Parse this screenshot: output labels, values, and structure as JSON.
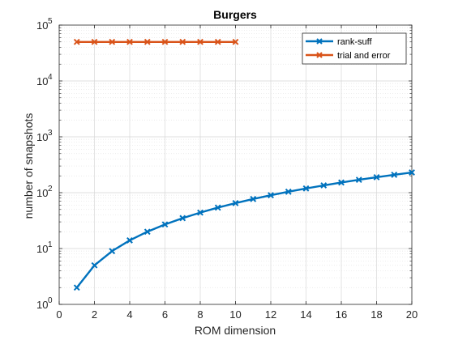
{
  "chart_data": {
    "type": "line",
    "title": "Burgers",
    "xlabel": "ROM dimension",
    "ylabel": "number of snapshots",
    "xlim": [
      0,
      20
    ],
    "ylim": [
      1,
      100000
    ],
    "yscale": "log",
    "grid": true,
    "minor_grid": true,
    "legend_position": "top-right",
    "x_ticks": [
      "0",
      "2",
      "4",
      "6",
      "8",
      "10",
      "12",
      "14",
      "16",
      "18",
      "20"
    ],
    "y_ticks": [
      {
        "base": "10",
        "exp": "0"
      },
      {
        "base": "10",
        "exp": "1"
      },
      {
        "base": "10",
        "exp": "2"
      },
      {
        "base": "10",
        "exp": "3"
      },
      {
        "base": "10",
        "exp": "4"
      },
      {
        "base": "10",
        "exp": "5"
      }
    ],
    "series": [
      {
        "name": "rank-suff",
        "color": "#0072BD",
        "marker": "x",
        "x": [
          1,
          2,
          3,
          4,
          5,
          6,
          7,
          8,
          9,
          10,
          11,
          12,
          13,
          14,
          15,
          16,
          17,
          18,
          19,
          20
        ],
        "y": [
          2,
          5,
          9,
          14,
          20,
          27,
          35,
          44,
          54,
          65,
          77,
          90,
          104,
          119,
          135,
          152,
          170,
          189,
          209,
          230
        ]
      },
      {
        "name": "trial and error",
        "color": "#D95319",
        "marker": "x",
        "x": [
          1,
          2,
          3,
          4,
          5,
          6,
          7,
          8,
          9,
          10
        ],
        "y": [
          50000,
          50000,
          50000,
          50000,
          50000,
          50000,
          50000,
          50000,
          50000,
          50000
        ]
      }
    ]
  }
}
